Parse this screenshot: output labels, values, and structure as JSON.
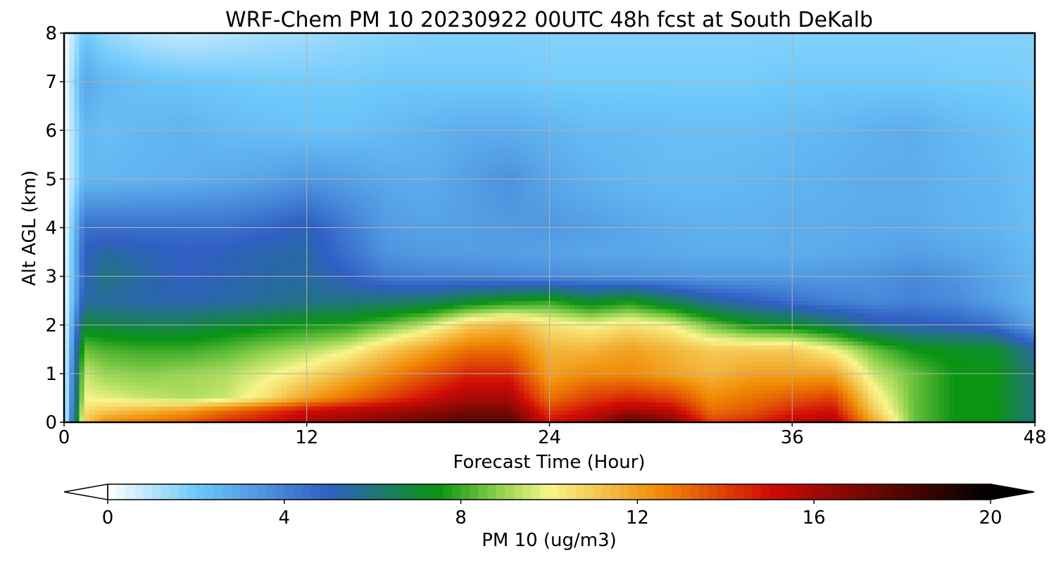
{
  "chart_data": {
    "type": "heatmap",
    "title": "WRF-Chem PM 10  20230922 00UTC 48h fcst at South DeKalb",
    "xlabel": "Forecast Time (Hour)",
    "ylabel": "Alt AGL (km)",
    "xlim": [
      0,
      48
    ],
    "ylim": [
      0,
      8
    ],
    "xticks": [
      "0",
      "12",
      "24",
      "36",
      "48"
    ],
    "yticks": [
      "0",
      "1",
      "2",
      "3",
      "4",
      "5",
      "6",
      "7",
      "8"
    ],
    "grid": true,
    "colorbar": {
      "label": "PM 10  (ug/m3)",
      "range": [
        0,
        20
      ],
      "ticks": [
        "0",
        "4",
        "8",
        "12",
        "16",
        "20"
      ],
      "extend": "both",
      "stops": [
        {
          "value": 0,
          "color": "#ffffff"
        },
        {
          "value": 2,
          "color": "#6ec9fb"
        },
        {
          "value": 5,
          "color": "#2f5fc3"
        },
        {
          "value": 7.5,
          "color": "#0a9412"
        },
        {
          "value": 9,
          "color": "#9bd653"
        },
        {
          "value": 10,
          "color": "#f8f58c"
        },
        {
          "value": 12.5,
          "color": "#f18b05"
        },
        {
          "value": 15,
          "color": "#d10b06"
        },
        {
          "value": 17,
          "color": "#7a0903"
        },
        {
          "value": 20,
          "color": "#000000"
        }
      ]
    },
    "hours": [
      0,
      1,
      2,
      4,
      6,
      8,
      10,
      12,
      14,
      16,
      18,
      20,
      22,
      24,
      26,
      28,
      30,
      32,
      34,
      36,
      38,
      40,
      42,
      44,
      46,
      48
    ],
    "heights_km": [
      0,
      0.25,
      0.5,
      1.0,
      1.5,
      2.0,
      2.5,
      3.0,
      3.5,
      4.0,
      5.0,
      6.0,
      7.0,
      8.0
    ],
    "pm10": [
      [
        0,
        11,
        12.5,
        13,
        13.5,
        14.5,
        15,
        16,
        16.5,
        17,
        17.5,
        18,
        18,
        15,
        16,
        18,
        17,
        14,
        14.5,
        15.5,
        16,
        12,
        8.5,
        7.5,
        7.5,
        6
      ],
      [
        0,
        10.5,
        11,
        11.5,
        12,
        13,
        14,
        15,
        15.5,
        16,
        16.5,
        17,
        17,
        14,
        15,
        16,
        15.5,
        13,
        13.5,
        14.5,
        15,
        11,
        8.5,
        7.5,
        7.5,
        6
      ],
      [
        0,
        10,
        9.8,
        9.5,
        9.2,
        9.5,
        10.5,
        12,
        13,
        14,
        15,
        16,
        16,
        13,
        14,
        14.5,
        14,
        12.5,
        13,
        13.5,
        14,
        10.5,
        8.5,
        7.5,
        7.5,
        6
      ],
      [
        0,
        9.5,
        9,
        8.8,
        9,
        9.2,
        9.8,
        10.5,
        11.5,
        12.5,
        13.5,
        14.5,
        14.5,
        12,
        12.5,
        12.5,
        12,
        11.5,
        12,
        12,
        12,
        9.5,
        8.5,
        7.5,
        7.5,
        6
      ],
      [
        0,
        8.5,
        8.2,
        8,
        8,
        8.3,
        8.8,
        9.2,
        9.8,
        11,
        12,
        13,
        13,
        11.5,
        11.5,
        12,
        11.5,
        11,
        11,
        11,
        10,
        8.5,
        7.5,
        7.3,
        7.2,
        5.5
      ],
      [
        0,
        7,
        6.8,
        6.6,
        6.6,
        7,
        7.3,
        7.6,
        7.8,
        8.5,
        9.5,
        11,
        11.5,
        10.5,
        10,
        10.5,
        10,
        8.5,
        7.5,
        7.2,
        6.5,
        5.5,
        5.2,
        5,
        4.5,
        3
      ],
      [
        0,
        5.5,
        5.5,
        5.3,
        5.3,
        5.4,
        5.6,
        5.8,
        5.9,
        6.1,
        6.3,
        7,
        7.5,
        7.8,
        7,
        7.5,
        6.5,
        5.5,
        5,
        4.5,
        4,
        3.8,
        4,
        3.8,
        3.2,
        2.5
      ],
      [
        0,
        5,
        6,
        5.4,
        5,
        5.2,
        5.4,
        5.5,
        5,
        4.2,
        4,
        4,
        3.8,
        3.7,
        3.6,
        3.5,
        3.4,
        3.3,
        3.3,
        3.3,
        3.4,
        3.5,
        3.8,
        3.5,
        3,
        2.5
      ],
      [
        0,
        5,
        5.5,
        5.2,
        5,
        5.1,
        5.3,
        5.4,
        4.5,
        3.5,
        3.3,
        3.2,
        3.2,
        3.1,
        3,
        3,
        2.9,
        2.8,
        2.8,
        2.8,
        2.9,
        3,
        3.2,
        3,
        2.8,
        2.4
      ],
      [
        0,
        4.5,
        4.5,
        4.5,
        4.5,
        4.5,
        4.8,
        5.2,
        4.2,
        3.3,
        3.1,
        3.2,
        3.3,
        3.4,
        3.2,
        3,
        2.8,
        2.7,
        2.7,
        2.8,
        2.8,
        2.9,
        2.9,
        2.7,
        2.6,
        2.3
      ],
      [
        0,
        2.5,
        2.5,
        2.6,
        2.7,
        2.9,
        3.1,
        3.4,
        3.2,
        2.9,
        2.8,
        3.2,
        3.6,
        3.0,
        2.7,
        2.5,
        2.4,
        2.4,
        2.5,
        2.6,
        2.7,
        2.8,
        2.8,
        2.6,
        2.5,
        2.2
      ],
      [
        0,
        2.5,
        2.3,
        2.5,
        2.6,
        2.4,
        2.3,
        2.2,
        2.2,
        2.4,
        2.6,
        2.8,
        2.8,
        2.6,
        2.4,
        2.4,
        2.3,
        2.3,
        2.3,
        2.4,
        2.5,
        2.7,
        2.8,
        2.5,
        2.3,
        2.1
      ],
      [
        0,
        3,
        2.5,
        2.2,
        2.1,
        2.0,
        1.9,
        1.9,
        1.9,
        2.0,
        2.0,
        2.0,
        2.0,
        1.9,
        1.9,
        1.9,
        1.9,
        1.9,
        1.9,
        2.0,
        2.0,
        2.0,
        2.0,
        1.9,
        1.9,
        1.8
      ],
      [
        0,
        2,
        1.5,
        1.0,
        0.8,
        1.0,
        1.2,
        1.3,
        1.5,
        1.6,
        1.7,
        1.7,
        1.7,
        1.7,
        1.7,
        1.7,
        1.7,
        1.7,
        1.7,
        1.7,
        1.7,
        1.7,
        1.7,
        1.7,
        1.7,
        1.7
      ]
    ]
  }
}
